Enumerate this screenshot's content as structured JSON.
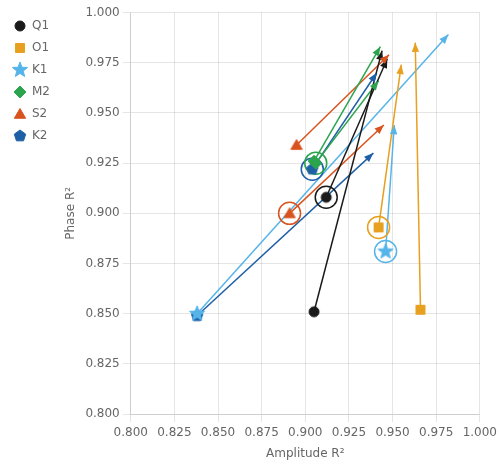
{
  "chart_data": {
    "type": "scatter",
    "xlabel": "Amplitude R²",
    "ylabel": "Phase R²",
    "xlim": [
      0.8,
      1.0
    ],
    "ylim": [
      0.8,
      1.0
    ],
    "xticks": [
      {
        "value": 0.8,
        "label": "0.800"
      },
      {
        "value": 0.825,
        "label": "0.825"
      },
      {
        "value": 0.85,
        "label": "0.850"
      },
      {
        "value": 0.875,
        "label": "0.875"
      },
      {
        "value": 0.9,
        "label": "0.900"
      },
      {
        "value": 0.925,
        "label": "0.925"
      },
      {
        "value": 0.95,
        "label": "0.950"
      },
      {
        "value": 0.975,
        "label": "0.975"
      },
      {
        "value": 1.0,
        "label": "1.000"
      }
    ],
    "yticks": [
      {
        "value": 0.8,
        "label": "0.800"
      },
      {
        "value": 0.825,
        "label": "0.825"
      },
      {
        "value": 0.85,
        "label": "0.850"
      },
      {
        "value": 0.875,
        "label": "0.875"
      },
      {
        "value": 0.9,
        "label": "0.900"
      },
      {
        "value": 0.925,
        "label": "0.925"
      },
      {
        "value": 0.95,
        "label": "0.950"
      },
      {
        "value": 0.975,
        "label": "0.975"
      },
      {
        "value": 1.0,
        "label": "1.000"
      }
    ],
    "grid": true,
    "legend": "upper left",
    "series": [
      {
        "name": "Q1",
        "color": "#1a1a1a",
        "marker": "circle",
        "ocean": {
          "start": [
            0.905,
            0.851
          ],
          "end": [
            0.944,
            0.981
          ]
        },
        "shelf": {
          "start": [
            0.912,
            0.908
          ],
          "end": [
            0.947,
            0.977
          ]
        }
      },
      {
        "name": "O1",
        "color": "#e8a020",
        "marker": "square",
        "ocean": {
          "start": [
            0.966,
            0.852
          ],
          "end": [
            0.963,
            0.985
          ]
        },
        "shelf": {
          "start": [
            0.942,
            0.893
          ],
          "end": [
            0.955,
            0.974
          ]
        }
      },
      {
        "name": "K1",
        "color": "#56b4e9",
        "marker": "star",
        "ocean": {
          "start": [
            0.838,
            0.85
          ],
          "end": [
            0.982,
            0.989
          ]
        },
        "shelf": {
          "start": [
            0.946,
            0.881
          ],
          "end": [
            0.951,
            0.944
          ]
        }
      },
      {
        "name": "M2",
        "color": "#2ca44e",
        "marker": "diamond",
        "ocean": {
          "start": [
            0.905,
            0.926
          ],
          "end": [
            0.943,
            0.983
          ]
        },
        "shelf": {
          "start": [
            0.906,
            0.925
          ],
          "end": [
            0.942,
            0.966
          ]
        }
      },
      {
        "name": "S2",
        "color": "#d9531e",
        "marker": "triangle",
        "ocean": {
          "start": [
            0.895,
            0.934
          ],
          "end": [
            0.948,
            0.979
          ]
        },
        "shelf": {
          "start": [
            0.891,
            0.9
          ],
          "end": [
            0.945,
            0.944
          ]
        }
      },
      {
        "name": "K2",
        "color": "#1f5fa6",
        "marker": "pentagon",
        "ocean": {
          "start": [
            0.838,
            0.849
          ],
          "end": [
            0.939,
            0.93
          ]
        },
        "shelf": {
          "start": [
            0.904,
            0.922
          ],
          "end": [
            0.941,
            0.97
          ]
        }
      }
    ]
  }
}
